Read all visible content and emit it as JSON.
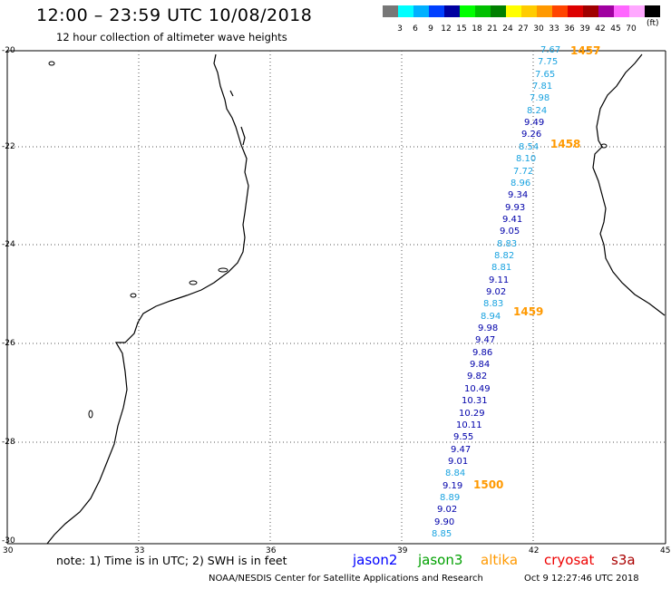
{
  "header": {
    "title": "12:00 – 23:59 UTC 10/08/2018",
    "subtitle": "12 hour collection of altimeter wave heights"
  },
  "legend": {
    "swatches": [
      {
        "color": "#777777",
        "label": ""
      },
      {
        "color": "#00ffff",
        "label": "3"
      },
      {
        "color": "#00b0ff",
        "label": "6"
      },
      {
        "color": "#0040ff",
        "label": "9"
      },
      {
        "color": "#0000a0",
        "label": "12"
      },
      {
        "color": "#00ff00",
        "label": "15"
      },
      {
        "color": "#00c000",
        "label": "18"
      },
      {
        "color": "#008000",
        "label": "21"
      },
      {
        "color": "#ffff00",
        "label": "24"
      },
      {
        "color": "#ffcc00",
        "label": "27"
      },
      {
        "color": "#ff9900",
        "label": "30"
      },
      {
        "color": "#ff4400",
        "label": "33"
      },
      {
        "color": "#dd0000",
        "label": "36"
      },
      {
        "color": "#a00000",
        "label": "39"
      },
      {
        "color": "#a000a0",
        "label": "42"
      },
      {
        "color": "#ff66ff",
        "label": "45"
      },
      {
        "color": "#ffa8ff",
        "label": "70"
      },
      {
        "color": "#000000",
        "label": ""
      }
    ],
    "unit": "(ft)"
  },
  "axes": {
    "lat_labels": [
      "-20",
      "-22",
      "-24",
      "-26",
      "-28",
      "-30"
    ],
    "lon_labels": [
      "30",
      "33",
      "36",
      "39",
      "42",
      "45"
    ]
  },
  "wave_heights": [
    {
      "value": "7.67",
      "color": "#1aa3e0"
    },
    {
      "value": "7.75",
      "color": "#1aa3e0"
    },
    {
      "value": "7.65",
      "color": "#1aa3e0"
    },
    {
      "value": "7.81",
      "color": "#1aa3e0"
    },
    {
      "value": "7.98",
      "color": "#1aa3e0"
    },
    {
      "value": "8.24",
      "color": "#1aa3e0"
    },
    {
      "value": "9.49",
      "color": "#0000aa"
    },
    {
      "value": "9.26",
      "color": "#0000aa"
    },
    {
      "value": "8.54",
      "color": "#1aa3e0"
    },
    {
      "value": "8.10",
      "color": "#1aa3e0"
    },
    {
      "value": "7.72",
      "color": "#1aa3e0"
    },
    {
      "value": "8.96",
      "color": "#1aa3e0"
    },
    {
      "value": "9.34",
      "color": "#0000aa"
    },
    {
      "value": "9.93",
      "color": "#0000aa"
    },
    {
      "value": "9.41",
      "color": "#0000aa"
    },
    {
      "value": "9.05",
      "color": "#0000aa"
    },
    {
      "value": "8.83",
      "color": "#1aa3e0"
    },
    {
      "value": "8.82",
      "color": "#1aa3e0"
    },
    {
      "value": "8.81",
      "color": "#1aa3e0"
    },
    {
      "value": "9.11",
      "color": "#0000aa"
    },
    {
      "value": "9.02",
      "color": "#0000aa"
    },
    {
      "value": "8.83",
      "color": "#1aa3e0"
    },
    {
      "value": "8.94",
      "color": "#1aa3e0"
    },
    {
      "value": "9.98",
      "color": "#0000aa"
    },
    {
      "value": "9.47",
      "color": "#0000aa"
    },
    {
      "value": "9.86",
      "color": "#0000aa"
    },
    {
      "value": "9.84",
      "color": "#0000aa"
    },
    {
      "value": "9.82",
      "color": "#0000aa"
    },
    {
      "value": "10.49",
      "color": "#0000aa"
    },
    {
      "value": "10.31",
      "color": "#0000aa"
    },
    {
      "value": "10.29",
      "color": "#0000aa"
    },
    {
      "value": "10.11",
      "color": "#0000aa"
    },
    {
      "value": "9.55",
      "color": "#0000aa"
    },
    {
      "value": "9.47",
      "color": "#0000aa"
    },
    {
      "value": "9.01",
      "color": "#0000aa"
    },
    {
      "value": "8.84",
      "color": "#1aa3e0"
    },
    {
      "value": "9.19",
      "color": "#0000aa"
    },
    {
      "value": "8.89",
      "color": "#1aa3e0"
    },
    {
      "value": "9.02",
      "color": "#0000aa"
    },
    {
      "value": "9.90",
      "color": "#0000aa"
    },
    {
      "value": "8.85",
      "color": "#1aa3e0"
    }
  ],
  "time_marks": [
    "1457",
    "1458",
    "1459",
    "1500"
  ],
  "note": "note: 1) Time is in UTC; 2) SWH is in feet",
  "satellites": [
    {
      "name": "jason2",
      "color": "#0000ff"
    },
    {
      "name": "jason3",
      "color": "#00a000"
    },
    {
      "name": "altika",
      "color": "#ff9900"
    },
    {
      "name": "cryosat",
      "color": "#ee0000"
    },
    {
      "name": "s3a",
      "color": "#aa0000"
    }
  ],
  "footer": {
    "credit": "NOAA/NESDIS Center for Satellite Applications and Research",
    "timestamp": "Oct  9 12:27:46 UTC 2018"
  }
}
